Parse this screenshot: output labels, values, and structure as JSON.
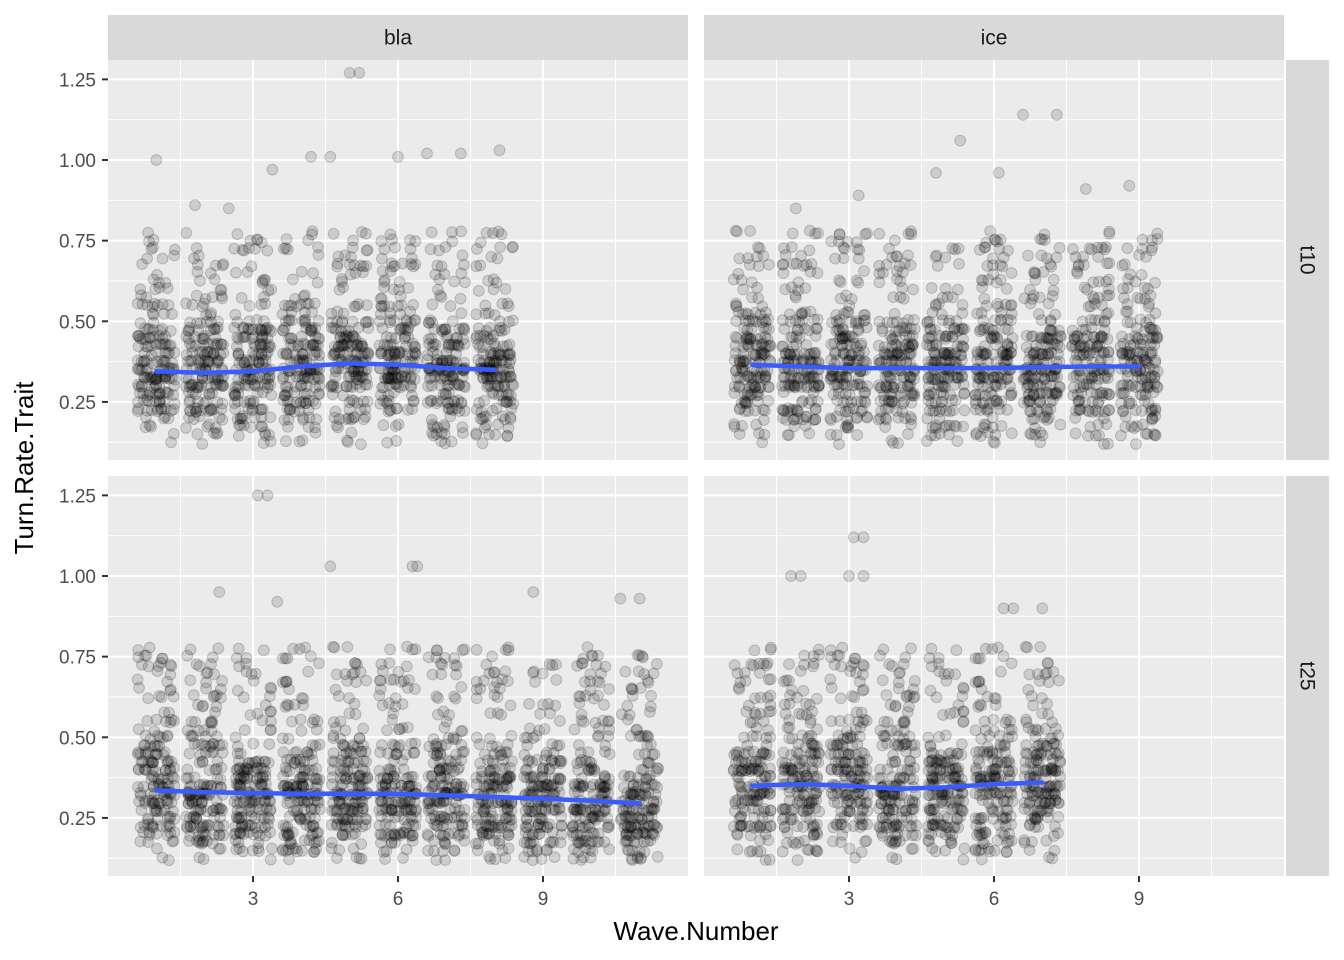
{
  "chart_data": {
    "type": "scatter",
    "xlabel": "Wave.Number",
    "ylabel": "Turn.Rate.Trait",
    "facet_columns": [
      "bla",
      "ice"
    ],
    "facet_rows": [
      "t10",
      "t25"
    ],
    "xlim": [
      0,
      12
    ],
    "ylim": [
      0.07,
      1.31
    ],
    "x_ticks": [
      3,
      6,
      9
    ],
    "y_ticks": [
      0.25,
      0.5,
      0.75,
      1.0,
      1.25
    ],
    "x_tick_labels": [
      "3",
      "6",
      "9"
    ],
    "y_tick_labels": [
      "0.25",
      "0.50",
      "0.75",
      "1.00",
      "1.25"
    ],
    "grid": true,
    "panels": [
      {
        "col": "bla",
        "row": "t10",
        "waves": [
          1,
          2,
          3,
          4,
          5,
          6,
          7,
          8
        ],
        "smooth": [
          [
            1,
            0.345
          ],
          [
            2,
            0.34
          ],
          [
            3,
            0.345
          ],
          [
            4,
            0.36
          ],
          [
            5,
            0.37
          ],
          [
            6,
            0.365
          ],
          [
            7,
            0.355
          ],
          [
            8,
            0.35
          ]
        ],
        "outliers": [
          [
            1.0,
            1.0
          ],
          [
            1.8,
            0.86
          ],
          [
            2.5,
            0.85
          ],
          [
            3.4,
            0.97
          ],
          [
            4.2,
            1.01
          ],
          [
            4.6,
            1.01
          ],
          [
            5.0,
            1.27
          ],
          [
            5.2,
            1.27
          ],
          [
            6.0,
            1.01
          ],
          [
            6.6,
            1.02
          ],
          [
            7.3,
            1.02
          ],
          [
            8.1,
            1.03
          ]
        ]
      },
      {
        "col": "ice",
        "row": "t10",
        "waves": [
          1,
          2,
          3,
          4,
          5,
          6,
          7,
          8,
          9
        ],
        "smooth": [
          [
            1,
            0.365
          ],
          [
            2,
            0.36
          ],
          [
            3,
            0.355
          ],
          [
            4,
            0.355
          ],
          [
            5,
            0.355
          ],
          [
            6,
            0.355
          ],
          [
            7,
            0.358
          ],
          [
            8,
            0.36
          ],
          [
            9,
            0.36
          ]
        ],
        "outliers": [
          [
            1.9,
            0.85
          ],
          [
            3.2,
            0.89
          ],
          [
            4.8,
            0.96
          ],
          [
            5.3,
            1.06
          ],
          [
            6.6,
            1.14
          ],
          [
            7.3,
            1.14
          ],
          [
            6.1,
            0.96
          ],
          [
            7.9,
            0.91
          ],
          [
            8.8,
            0.92
          ]
        ]
      },
      {
        "col": "bla",
        "row": "t25",
        "waves": [
          1,
          2,
          3,
          4,
          5,
          6,
          7,
          8,
          9,
          10,
          11
        ],
        "smooth": [
          [
            1,
            0.335
          ],
          [
            2,
            0.33
          ],
          [
            3,
            0.327
          ],
          [
            4,
            0.325
          ],
          [
            5,
            0.325
          ],
          [
            6,
            0.325
          ],
          [
            7,
            0.32
          ],
          [
            8,
            0.315
          ],
          [
            9,
            0.31
          ],
          [
            10,
            0.303
          ],
          [
            11,
            0.295
          ]
        ],
        "outliers": [
          [
            3.1,
            1.25
          ],
          [
            3.3,
            1.25
          ],
          [
            4.6,
            1.03
          ],
          [
            6.3,
            1.03
          ],
          [
            6.4,
            1.03
          ],
          [
            2.3,
            0.95
          ],
          [
            3.5,
            0.92
          ],
          [
            8.8,
            0.95
          ],
          [
            10.6,
            0.93
          ],
          [
            11.0,
            0.93
          ]
        ]
      },
      {
        "col": "ice",
        "row": "t25",
        "waves": [
          1,
          2,
          3,
          4,
          5,
          6,
          7
        ],
        "smooth": [
          [
            1,
            0.35
          ],
          [
            2,
            0.355
          ],
          [
            3,
            0.35
          ],
          [
            4,
            0.34
          ],
          [
            5,
            0.345
          ],
          [
            6,
            0.355
          ],
          [
            7,
            0.36
          ]
        ],
        "outliers": [
          [
            3.1,
            1.12
          ],
          [
            3.3,
            1.12
          ],
          [
            3.0,
            1.0
          ],
          [
            3.3,
            1.0
          ],
          [
            1.8,
            1.0
          ],
          [
            2.0,
            1.0
          ],
          [
            6.2,
            0.9
          ],
          [
            6.4,
            0.9
          ],
          [
            7.0,
            0.9
          ]
        ]
      }
    ]
  }
}
